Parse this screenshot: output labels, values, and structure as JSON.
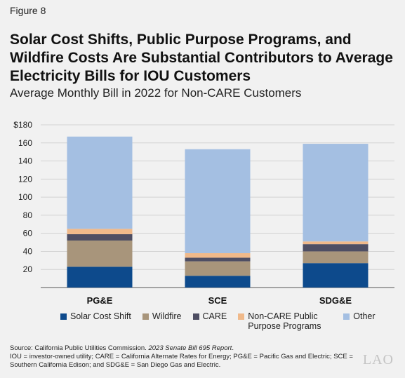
{
  "figure_label": "Figure 8",
  "title": "Solar Cost Shifts, Public Purpose Programs, and Wildfire Costs Are Substantial Contributors to Average Electricity Bills for IOU Customers",
  "subtitle": "Average Monthly Bill in 2022 for Non-CARE Customers",
  "source": {
    "prefix": "Source: California Public Utilities Commission. ",
    "report": "2023 Senate Bill 695 Report",
    "suffix": ".",
    "notes": "IOU = investor-owned utility; CARE = California Alternate Rates for Energy; PG&E = Pacific Gas and Electric; SCE = Southern California Edison; and SDG&E = San Diego Gas and Electric."
  },
  "logo": "LAO",
  "chart_data": {
    "type": "bar",
    "stacked": true,
    "categories": [
      "PG&E",
      "SCE",
      "SDG&E"
    ],
    "series": [
      {
        "name": "Solar Cost Shift",
        "color": "#0d4a8c",
        "values": [
          23,
          13,
          27
        ]
      },
      {
        "name": "Wildfire",
        "color": "#a8957b",
        "values": [
          29,
          16,
          13
        ]
      },
      {
        "name": "CARE",
        "color": "#4e4e63",
        "values": [
          7,
          4,
          8
        ]
      },
      {
        "name": "Non-CARE Public Purpose Programs",
        "color": "#f0b98a",
        "values": [
          6,
          5,
          3
        ]
      },
      {
        "name": "Other",
        "color": "#a4bfe2",
        "values": [
          102,
          115,
          108
        ]
      }
    ],
    "ylim": [
      0,
      180
    ],
    "yticks": [
      20,
      40,
      60,
      80,
      100,
      120,
      140,
      160,
      180
    ],
    "ytick_labels": [
      "20",
      "40",
      "60",
      "80",
      "100",
      "120",
      "140",
      "160",
      "$180"
    ],
    "grid": true,
    "legend_position": "bottom"
  }
}
